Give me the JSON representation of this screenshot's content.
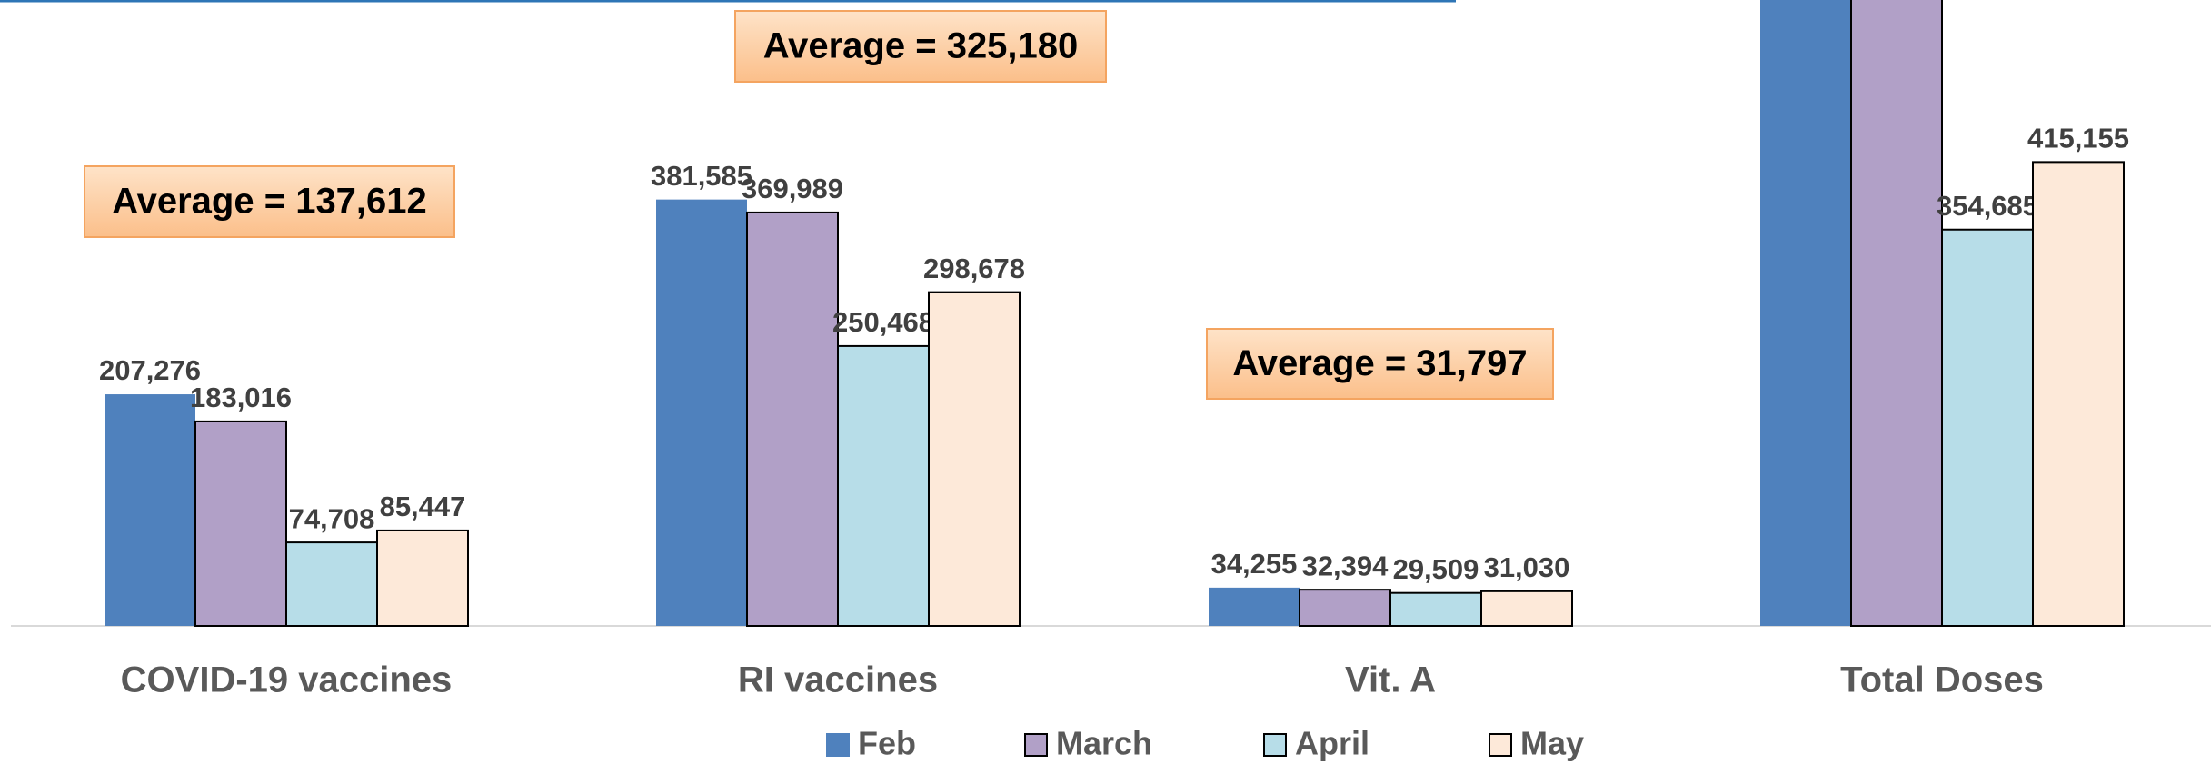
{
  "chart_data": {
    "type": "bar",
    "categories": [
      "COVID-19 vaccines",
      "RI vaccines",
      "Vit. A",
      "Total Doses"
    ],
    "series": [
      {
        "name": "Feb",
        "color": "#4f81bd",
        "values": [
          207276,
          381585,
          34255,
          623116
        ],
        "value_labels": [
          "207,276",
          "381,585",
          "34,255",
          null
        ]
      },
      {
        "name": "March",
        "color": "#b1a0c7",
        "values": [
          183016,
          369989,
          32394,
          585399
        ],
        "value_labels": [
          "183,016",
          "369,989",
          "32,394",
          null
        ]
      },
      {
        "name": "April",
        "color": "#b7dde8",
        "values": [
          74708,
          250468,
          29509,
          354685
        ],
        "value_labels": [
          "74,708",
          "250,468",
          "29,509",
          "354,685"
        ]
      },
      {
        "name": "May",
        "color": "#fde9d9",
        "values": [
          85447,
          298678,
          31030,
          415155
        ],
        "value_labels": [
          "85,447",
          "298,678",
          "31,030",
          "415,155"
        ]
      }
    ],
    "annotations": [
      "Average = 137,612",
      "Average = 325,180",
      "Average = 31,797"
    ]
  }
}
